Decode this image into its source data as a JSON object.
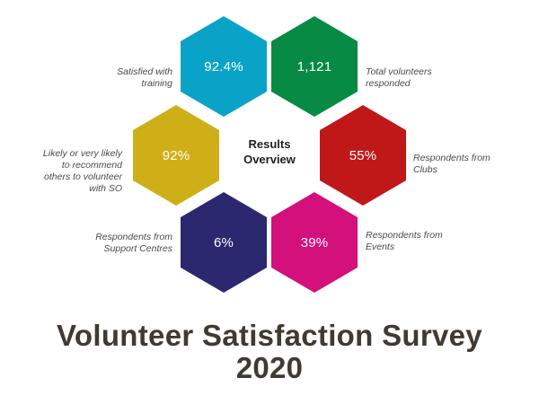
{
  "center_label": "Results\nOverview",
  "hexagons": [
    {
      "value": "92.4%",
      "label": "Satisfied with\ntraining",
      "color": "#0aa3c8"
    },
    {
      "value": "1,121",
      "label": "Total volunteers\nresponded",
      "color": "#078a44"
    },
    {
      "value": "92%",
      "label": "Likely or very likely\nto recommend\nothers to volunteer\nwith SO",
      "color": "#cfaf17"
    },
    {
      "value": "55%",
      "label": "Respondents from\nClubs",
      "color": "#c01818"
    },
    {
      "value": "6%",
      "label": "Respondents from\nSupport Centres",
      "color": "#2b286f"
    },
    {
      "value": "39%",
      "label": "Respondents from\nEvents",
      "color": "#d3107c"
    }
  ],
  "title": "Volunteer Satisfaction Survey\n2020"
}
